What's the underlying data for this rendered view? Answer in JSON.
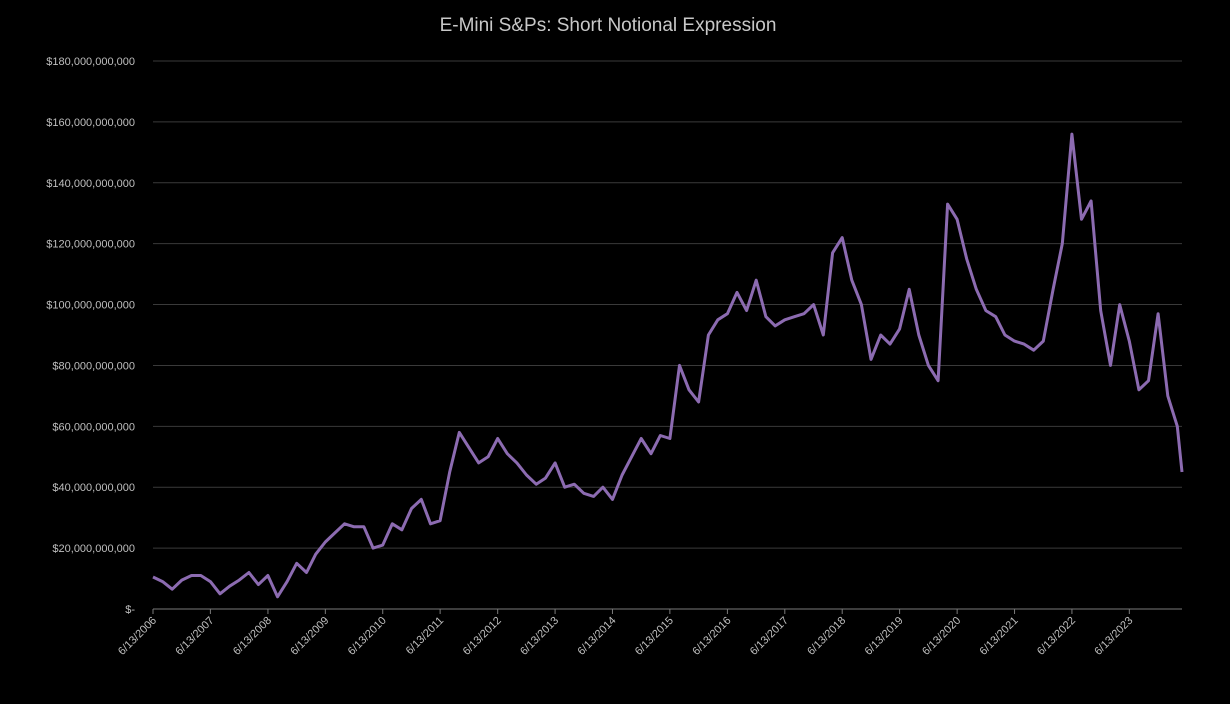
{
  "chart_data": {
    "type": "line",
    "title": "E-Mini S&Ps: Short Notional Expression",
    "x": [
      "6/13/2006",
      "8/13/2006",
      "10/13/2006",
      "12/13/2006",
      "2/13/2007",
      "4/13/2007",
      "6/13/2007",
      "8/13/2007",
      "10/13/2007",
      "12/13/2007",
      "2/13/2008",
      "4/13/2008",
      "6/13/2008",
      "8/13/2008",
      "10/13/2008",
      "12/13/2008",
      "2/13/2009",
      "4/13/2009",
      "6/13/2009",
      "8/13/2009",
      "10/13/2009",
      "12/13/2009",
      "2/13/2010",
      "4/13/2010",
      "6/13/2010",
      "8/13/2010",
      "10/13/2010",
      "12/13/2010",
      "2/13/2011",
      "4/13/2011",
      "6/13/2011",
      "8/13/2011",
      "10/13/2011",
      "12/13/2011",
      "2/13/2012",
      "4/13/2012",
      "6/13/2012",
      "8/13/2012",
      "10/13/2012",
      "12/13/2012",
      "2/13/2013",
      "4/13/2013",
      "6/13/2013",
      "8/13/2013",
      "10/13/2013",
      "12/13/2013",
      "2/13/2014",
      "4/13/2014",
      "6/13/2014",
      "8/13/2014",
      "10/13/2014",
      "12/13/2014",
      "2/13/2015",
      "4/13/2015",
      "6/13/2015",
      "8/13/2015",
      "10/13/2015",
      "12/13/2015",
      "2/13/2016",
      "4/13/2016",
      "6/13/2016",
      "8/13/2016",
      "10/13/2016",
      "12/13/2016",
      "2/13/2017",
      "4/13/2017",
      "6/13/2017",
      "8/13/2017",
      "10/13/2017",
      "12/13/2017",
      "2/13/2018",
      "4/13/2018",
      "6/13/2018",
      "8/13/2018",
      "10/13/2018",
      "12/13/2018",
      "2/13/2019",
      "4/13/2019",
      "6/13/2019",
      "8/13/2019",
      "10/13/2019",
      "12/13/2019",
      "2/13/2020",
      "4/13/2020",
      "6/13/2020",
      "8/13/2020",
      "10/13/2020",
      "12/13/2020",
      "2/13/2021",
      "4/13/2021",
      "6/13/2021",
      "8/13/2021",
      "10/13/2021",
      "12/13/2021",
      "2/13/2022",
      "4/13/2022",
      "6/13/2022",
      "8/13/2022",
      "10/13/2022",
      "12/13/2022",
      "2/13/2023",
      "4/13/2023",
      "6/13/2023",
      "8/13/2023",
      "10/13/2023",
      "12/13/2023",
      "2/13/2024",
      "4/13/2024",
      "5/13/2024"
    ],
    "series": [
      {
        "name": "Short Notional",
        "color": "#8c6bb1",
        "values": [
          10500000000,
          9000000000,
          6500000000,
          9500000000,
          11000000000,
          11000000000,
          9000000000,
          5000000000,
          7500000000,
          9500000000,
          12000000000,
          8000000000,
          11000000000,
          4000000000,
          9000000000,
          15000000000,
          12000000000,
          18000000000,
          22000000000,
          25000000000,
          28000000000,
          27000000000,
          27000000000,
          20000000000,
          21000000000,
          28000000000,
          26000000000,
          33000000000,
          36000000000,
          28000000000,
          29000000000,
          45000000000,
          58000000000,
          53000000000,
          48000000000,
          50000000000,
          56000000000,
          51000000000,
          48000000000,
          44000000000,
          41000000000,
          43000000000,
          48000000000,
          40000000000,
          41000000000,
          38000000000,
          37000000000,
          40000000000,
          36000000000,
          44000000000,
          50000000000,
          56000000000,
          51000000000,
          57000000000,
          56000000000,
          80000000000,
          72000000000,
          68000000000,
          90000000000,
          95000000000,
          97000000000,
          104000000000,
          98000000000,
          108000000000,
          96000000000,
          93000000000,
          95000000000,
          96000000000,
          97000000000,
          100000000000,
          90000000000,
          117000000000,
          122000000000,
          108000000000,
          100000000000,
          82000000000,
          90000000000,
          87000000000,
          92000000000,
          105000000000,
          90000000000,
          80000000000,
          75000000000,
          133000000000,
          128000000000,
          115000000000,
          105000000000,
          98000000000,
          96000000000,
          90000000000,
          88000000000,
          87000000000,
          85000000000,
          88000000000,
          105000000000,
          120000000000,
          156000000000,
          128000000000,
          134000000000,
          98000000000,
          80000000000,
          100000000000,
          88000000000,
          72000000000,
          75000000000,
          97000000000,
          70000000000,
          60000000000,
          45000000000
        ]
      }
    ],
    "xlim": [
      "6/13/2006",
      "5/13/2024"
    ],
    "xticks": [
      "6/13/2006",
      "6/13/2007",
      "6/13/2008",
      "6/13/2009",
      "6/13/2010",
      "6/13/2011",
      "6/13/2012",
      "6/13/2013",
      "6/13/2014",
      "6/13/2015",
      "6/13/2016",
      "6/13/2017",
      "6/13/2018",
      "6/13/2019",
      "6/13/2020",
      "6/13/2021",
      "6/13/2022",
      "6/13/2023"
    ],
    "ylim": [
      0,
      180000000000
    ],
    "yticks": [
      {
        "value": 0,
        "label": "$-"
      },
      {
        "value": 20000000000,
        "label": "$20,000,000,000"
      },
      {
        "value": 40000000000,
        "label": "$40,000,000,000"
      },
      {
        "value": 60000000000,
        "label": "$60,000,000,000"
      },
      {
        "value": 80000000000,
        "label": "$80,000,000,000"
      },
      {
        "value": 100000000000,
        "label": "$100,000,000,000"
      },
      {
        "value": 120000000000,
        "label": "$120,000,000,000"
      },
      {
        "value": 140000000000,
        "label": "$140,000,000,000"
      },
      {
        "value": 160000000000,
        "label": "$160,000,000,000"
      },
      {
        "value": 180000000000,
        "label": "$180,000,000,000"
      }
    ],
    "grid": true
  }
}
